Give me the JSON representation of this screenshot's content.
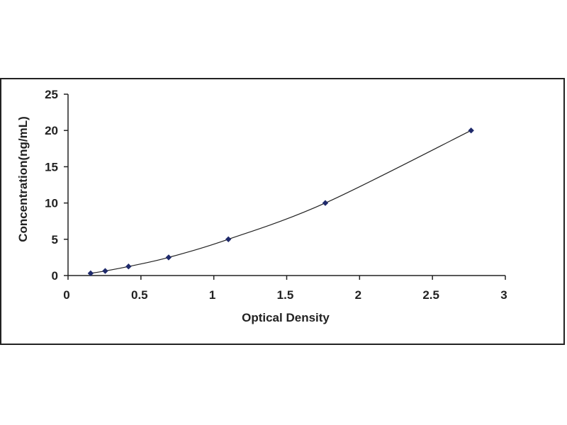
{
  "chart_data": {
    "type": "scatter",
    "xlabel": "Optical Density",
    "ylabel": "Concentration(ng/mL)",
    "xlim": [
      0,
      3
    ],
    "ylim": [
      0,
      25
    ],
    "x_ticks": [
      "0",
      "0.5",
      "1",
      "1.5",
      "2",
      "2.5",
      "3"
    ],
    "y_ticks": [
      "0",
      "5",
      "10",
      "15",
      "20",
      "25"
    ],
    "grid": false,
    "trendline": true,
    "series": [
      {
        "x": [
          0.155,
          0.255,
          0.415,
          0.69,
          1.1,
          1.765,
          2.765
        ],
        "y": [
          0.31,
          0.63,
          1.25,
          2.5,
          5,
          10,
          20
        ],
        "marker_color": "#1f2a6b",
        "line_color": "#222222"
      }
    ]
  }
}
